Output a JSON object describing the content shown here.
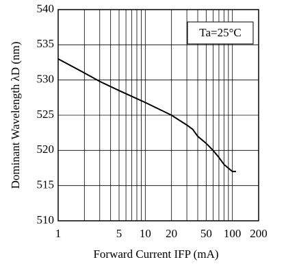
{
  "chart_data": {
    "type": "line",
    "xlabel": "Forward Current IFP (mA)",
    "ylabel": "Dominant Wavelength λD (nm)",
    "annotation": "Ta=25°C",
    "x": [
      1,
      2,
      3,
      5,
      10,
      20,
      30,
      35,
      40,
      50,
      60,
      70,
      80,
      100,
      110
    ],
    "series": [
      {
        "name": "λD",
        "color": "#000000",
        "values": [
          533,
          531,
          529.8,
          528.5,
          526.8,
          525,
          523.6,
          523,
          522,
          521,
          520,
          519,
          518,
          517,
          517
        ]
      }
    ],
    "xscale": "log",
    "xlim": [
      1,
      200
    ],
    "xticks": [
      1,
      5,
      10,
      20,
      50,
      100,
      200
    ],
    "xminorticks": [
      2,
      3,
      4,
      6,
      7,
      8,
      9,
      30,
      40,
      60,
      70,
      80,
      90
    ],
    "ylim": [
      510,
      540
    ],
    "yticks": [
      510,
      515,
      520,
      525,
      530,
      535,
      540
    ],
    "grid": true
  }
}
